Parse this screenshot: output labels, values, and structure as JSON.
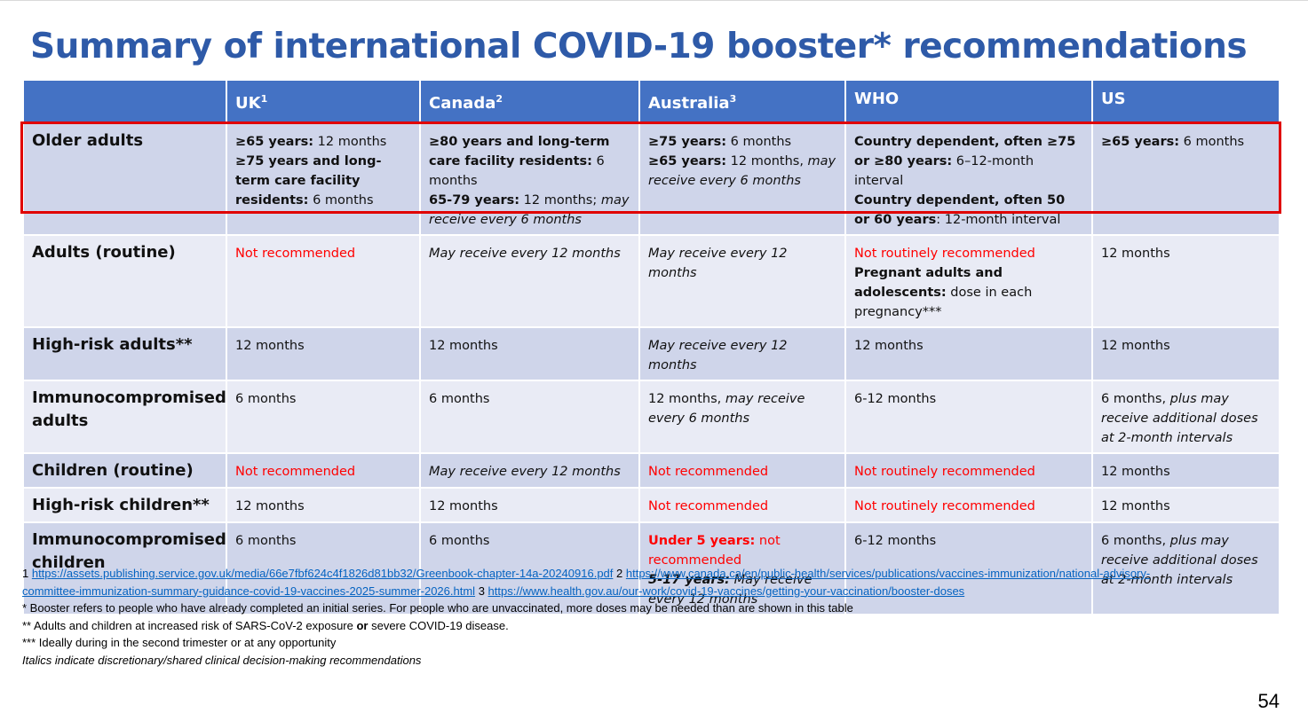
{
  "title": "Summary of international COVID-19 booster* recommendations",
  "colors": {
    "header": "#4472c4",
    "title": "#2e5aa8",
    "row_dark": "#cfd5ea",
    "row_light": "#e9ebf5",
    "highlight": "#e00000",
    "negative": "#ff0000",
    "link": "#0563c1"
  },
  "columns": [
    {
      "label": "UK",
      "sup": "1"
    },
    {
      "label": "Canada",
      "sup": "2"
    },
    {
      "label": "Australia",
      "sup": "3"
    },
    {
      "label": "WHO",
      "sup": ""
    },
    {
      "label": "US",
      "sup": ""
    }
  ],
  "rows": [
    {
      "label": "Older adults",
      "highlighted": true,
      "cells": [
        {
          "a_b": "≥65 years:",
          "a_t": " 12 months",
          "b_b": "≥75 years and long-term care facility residents:",
          "b_t": " 6 months"
        },
        {
          "a_b": "≥80 years and long-term care facility residents:",
          "a_t": " 6 months",
          "b_b": "65-79 years:",
          "b_t": " 12 months; ",
          "b_i": "may receive every 6 months"
        },
        {
          "a_b": "≥75 years:",
          "a_t": " 6 months",
          "b_b": "≥65 years:",
          "b_t": " 12 months, ",
          "b_i": "may receive every 6 months"
        },
        {
          "a_b": "Country dependent, often ≥75 or ≥80 years:",
          "a_t": " 6–12-month interval",
          "b_b": "Country dependent, often 50 or 60 years",
          "b_t": ": 12-month interval"
        },
        {
          "a_b": "≥65 years:",
          "a_t": " 6 months"
        }
      ]
    },
    {
      "label": "Adults (routine)",
      "cells": [
        {
          "red": "Not recommended"
        },
        {
          "ital": "May receive every 12 months"
        },
        {
          "ital": "May receive every 12 months"
        },
        {
          "red": "Not routinely recommended",
          "b_b": "Pregnant adults and adolescents:",
          "b_t": " dose in each pregnancy***"
        },
        {
          "text": "12 months"
        }
      ]
    },
    {
      "label": "High-risk adults**",
      "cells": [
        {
          "text": "12 months"
        },
        {
          "text": "12 months"
        },
        {
          "ital": "May receive every 12 months"
        },
        {
          "text": "12 months"
        },
        {
          "text": "12 months"
        }
      ]
    },
    {
      "label": "Immunocompromised adults",
      "cells": [
        {
          "text": "6 months"
        },
        {
          "text": "6 months"
        },
        {
          "text": "12 months, ",
          "ital": "may receive every 6 months"
        },
        {
          "text": "6-12 months"
        },
        {
          "text": "6 months, ",
          "ital": "plus may receive additional doses at 2-month intervals"
        }
      ]
    },
    {
      "label": "Children (routine)",
      "cells": [
        {
          "red": "Not recommended"
        },
        {
          "ital": "May receive every 12 months"
        },
        {
          "red": "Not recommended"
        },
        {
          "red": "Not routinely recommended"
        },
        {
          "text": "12 months"
        }
      ]
    },
    {
      "label": "High-risk children**",
      "cells": [
        {
          "text": "12 months"
        },
        {
          "text": "12 months"
        },
        {
          "red": "Not recommended"
        },
        {
          "red": "Not routinely recommended"
        },
        {
          "text": "12 months"
        }
      ]
    },
    {
      "label": "Immunocompromised children",
      "cells": [
        {
          "text": "6 months"
        },
        {
          "text": "6 months"
        },
        {
          "red_b": "Under 5 years:",
          "red": " not recommended",
          "bi": "5-17 years:",
          "ital": " May receive every 12 months"
        },
        {
          "text": "6-12 months"
        },
        {
          "text": "6 months, ",
          "ital": "plus may receive additional doses at 2-month intervals"
        }
      ]
    }
  ],
  "footnotes": {
    "refs": [
      {
        "num": "1 ",
        "url": "https://assets.publishing.service.gov.uk/media/66e7fbf624c4f1826d81bb32/Greenbook-chapter-14a-20240916.pdf"
      },
      {
        "num": " 2 ",
        "url": "https://www.canada.ca/en/public-health/services/publications/vaccines-immunization/national-advisory-committee-immunization-summary-guidance-covid-19-vaccines-2025-summer-2026.html"
      },
      {
        "num": " 3 ",
        "url": "https://www.health.gov.au/our-work/covid-19-vaccines/getting-your-vaccination/booster-doses"
      }
    ],
    "booster": "* Booster refers to people who have already completed an initial series. For people who are unvaccinated, more doses may be needed than are shown in this table",
    "risk_pre": "** Adults and children at increased risk of SARS-CoV-2 exposure ",
    "risk_or": "or",
    "risk_post": " severe COVID-19 disease.",
    "trimester": "*** Ideally during in the second trimester or at any opportunity",
    "italics": "Italics indicate discretionary/shared clinical decision-making recommendations"
  },
  "page_number": "54"
}
